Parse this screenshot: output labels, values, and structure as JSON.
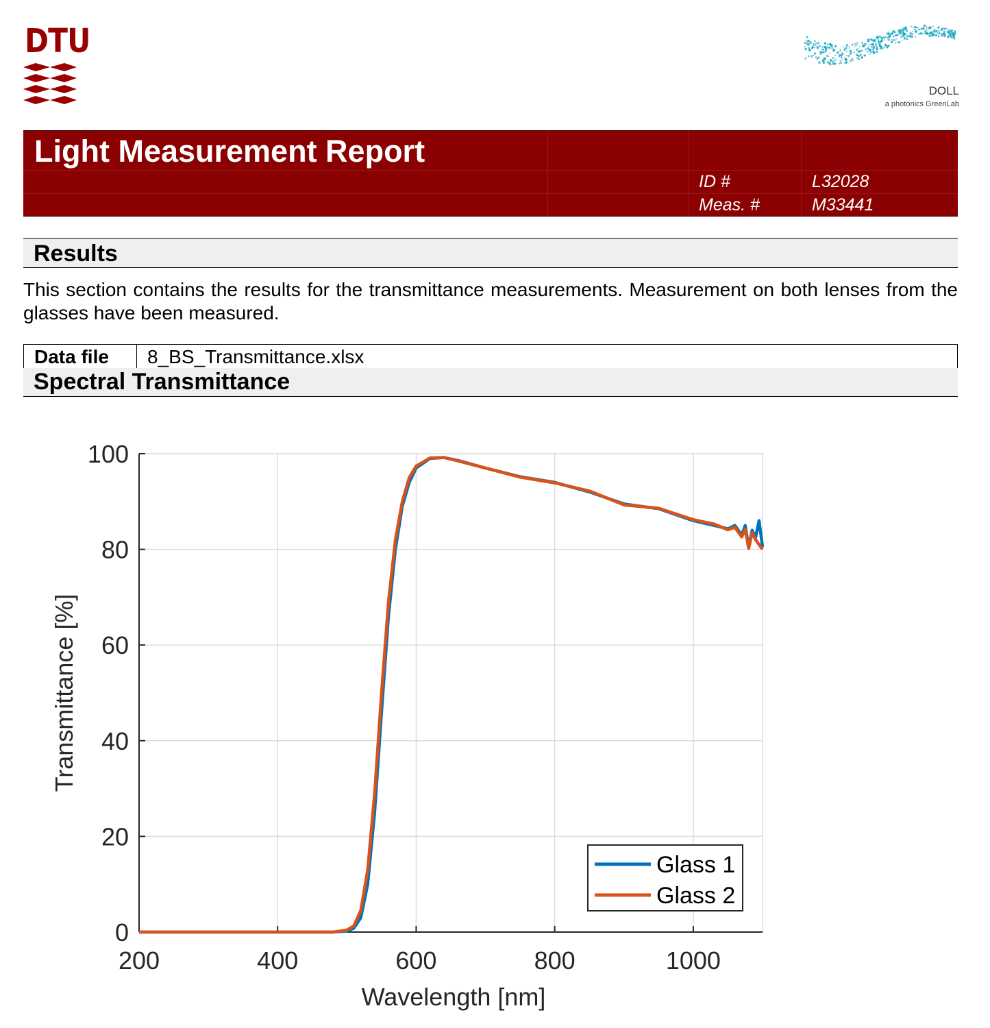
{
  "logos": {
    "dtu": {
      "text": "DTU",
      "color": "#990000"
    },
    "doll": {
      "name": "DOLL",
      "tagline": "a photonics GreenLab",
      "color": "#1aa6c4"
    }
  },
  "header": {
    "title": "Light Measurement Report",
    "id_label": "ID #",
    "id_value": "L32028",
    "meas_label": "Meas. #",
    "meas_value": "M33441",
    "background": "#8b0000"
  },
  "results": {
    "heading": "Results",
    "description": "This section contains the results for the transmittance measurements. Measurement on both lenses from the glasses have been measured.",
    "data_file_label": "Data file",
    "data_file_value": "8_BS_Transmittance.xlsx"
  },
  "spectral": {
    "heading": "Spectral Transmittance"
  },
  "chart_data": {
    "type": "line",
    "title": "",
    "xlabel": "Wavelength [nm]",
    "ylabel": "Transmittance [%]",
    "xlim": [
      200,
      1100
    ],
    "ylim": [
      0,
      100
    ],
    "xticks": [
      200,
      400,
      600,
      800,
      1000
    ],
    "yticks": [
      0,
      20,
      40,
      60,
      80,
      100
    ],
    "grid": true,
    "legend_position": "bottom-right",
    "series": [
      {
        "name": "Glass 1",
        "color": "#0072bd",
        "x": [
          200,
          300,
          400,
          480,
          500,
          510,
          520,
          530,
          540,
          550,
          560,
          570,
          580,
          590,
          600,
          620,
          640,
          660,
          700,
          750,
          800,
          850,
          900,
          950,
          1000,
          1030,
          1050,
          1060,
          1070,
          1075,
          1080,
          1085,
          1090,
          1095,
          1100
        ],
        "y": [
          0,
          0,
          0,
          0,
          0.2,
          0.8,
          3,
          10,
          25,
          46,
          66,
          80,
          89,
          94,
          97,
          99,
          99.2,
          98.6,
          97,
          95.2,
          94,
          92,
          89.5,
          88.5,
          86,
          85,
          84.3,
          85,
          83,
          85,
          80.5,
          84,
          82.5,
          86,
          80.5
        ]
      },
      {
        "name": "Glass 2",
        "color": "#d95319",
        "x": [
          200,
          300,
          400,
          480,
          500,
          510,
          520,
          530,
          540,
          550,
          560,
          570,
          580,
          590,
          600,
          620,
          640,
          660,
          700,
          750,
          800,
          850,
          900,
          950,
          1000,
          1030,
          1050,
          1060,
          1070,
          1075,
          1080,
          1085,
          1090,
          1095,
          1100
        ],
        "y": [
          0,
          0,
          0,
          0,
          0.4,
          1.3,
          4.5,
          13,
          29,
          50,
          69,
          82,
          90,
          95,
          97.4,
          99.1,
          99.2,
          98.5,
          97,
          95.1,
          93.9,
          92.2,
          89.3,
          88.6,
          86.2,
          85.3,
          84.1,
          84.6,
          82.6,
          84.2,
          80.2,
          83.5,
          82,
          81,
          80
        ]
      }
    ]
  }
}
